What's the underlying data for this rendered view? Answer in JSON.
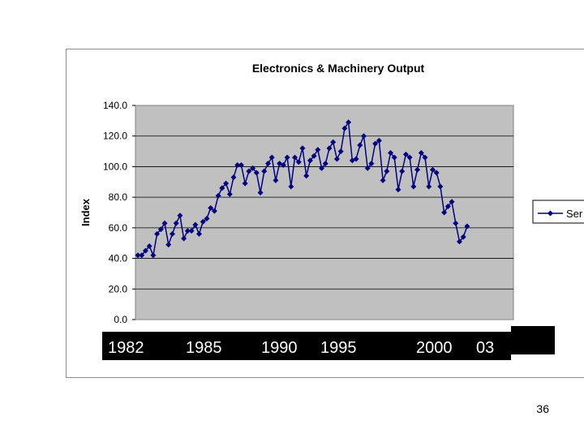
{
  "page": {
    "number": "36"
  },
  "legend": {
    "label": "Ser"
  },
  "overlay_years": [
    "1982",
    "1985",
    "1990",
    "1995",
    "2000",
    "03"
  ],
  "chart_data": {
    "type": "line",
    "title": "Electronics & Machinery Output",
    "xlabel": "",
    "ylabel": "Index",
    "ylim": [
      0,
      140
    ],
    "yticks": [
      "0.0",
      "20.0",
      "40.0",
      "60.0",
      "80.0",
      "100.0",
      "120.0",
      "140.0"
    ],
    "grid": true,
    "legend_position": "right",
    "colors": {
      "series": "#000080",
      "plot_bg": "#c0c0c0",
      "grid": "#000000"
    },
    "series": [
      {
        "values": [
          42,
          42,
          45,
          48,
          42,
          56,
          59,
          63,
          49,
          56,
          63,
          68,
          53,
          58,
          58,
          62,
          56,
          64,
          66,
          73,
          71,
          81,
          86,
          89,
          82,
          93,
          101,
          101,
          89,
          97,
          99,
          96,
          83,
          97,
          102,
          106,
          91,
          102,
          101,
          106,
          87,
          106,
          103,
          112,
          94,
          104,
          107,
          111,
          99,
          102,
          112,
          116,
          105,
          110,
          125,
          129,
          104,
          105,
          114,
          120,
          99,
          102,
          115,
          117,
          91,
          97,
          109,
          106,
          85,
          97,
          108,
          106,
          87,
          98,
          109,
          106,
          87,
          98,
          96,
          87,
          70,
          74,
          77,
          63,
          51,
          54,
          61
        ]
      }
    ]
  }
}
